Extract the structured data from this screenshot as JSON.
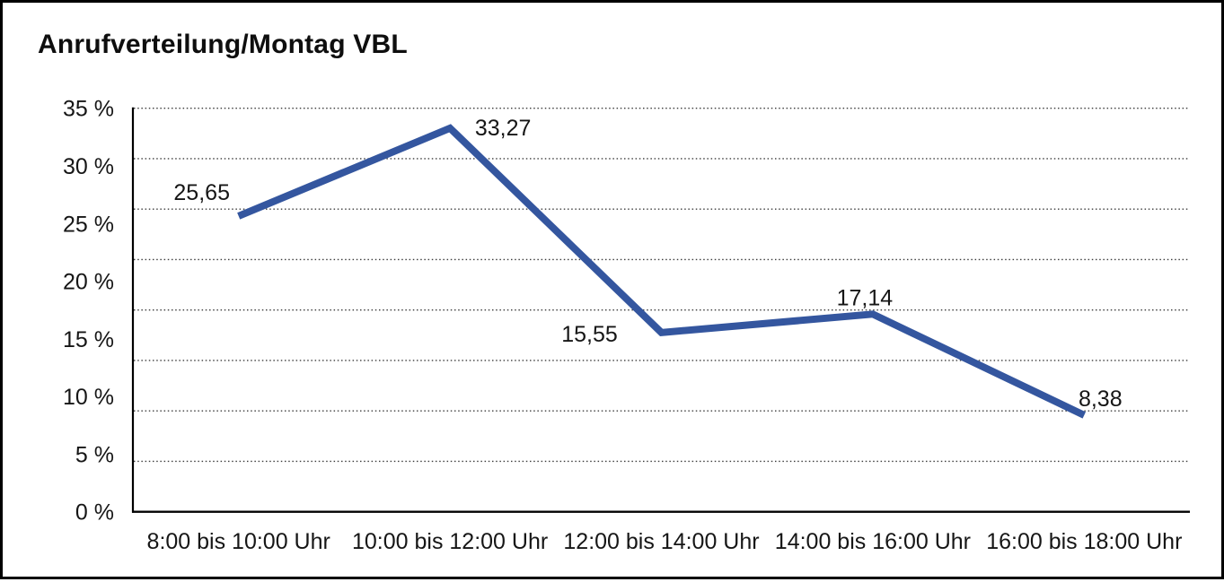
{
  "title": "Anrufverteilung/Montag VBL",
  "chart_data": {
    "type": "line",
    "title": "Anrufverteilung/Montag VBL",
    "categories": [
      "8:00 bis 10:00 Uhr",
      "10:00 bis 12:00 Uhr",
      "12:00 bis 14:00 Uhr",
      "14:00 bis 16:00 Uhr",
      "16:00 bis 18:00 Uhr"
    ],
    "values": [
      25.65,
      33.27,
      15.55,
      17.14,
      8.38
    ],
    "point_labels": [
      "25,65",
      "33,27",
      "15,55",
      "17,14",
      "8,38"
    ],
    "y_ticks": [
      "35 %",
      "30 %",
      "25 %",
      "20 %",
      "15 %",
      "10 %",
      "5 %",
      "0 %"
    ],
    "y_tick_values": [
      35,
      30,
      25,
      20,
      15,
      10,
      5,
      0
    ],
    "ylim": [
      0,
      35
    ],
    "xlabel": "",
    "ylabel": "",
    "grid": "horizontal-dotted",
    "grid_divisions": 8,
    "legend": "none",
    "line_color": "#34569F",
    "axis_color": "#000000",
    "grid_color": "#3c3c3c",
    "text_color": "#161616"
  }
}
